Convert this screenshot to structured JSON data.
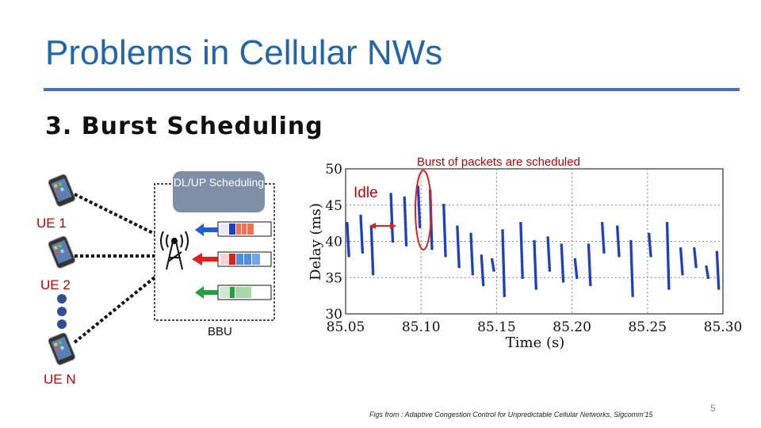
{
  "slide": {
    "title": "Problems in Cellular NWs",
    "subtitle": "3. Burst Scheduling",
    "page_number": "5",
    "footer_citation": "Figs from : Adaptive Congestion Control for Unpredictable Cellular Networks, Sigcomm'15"
  },
  "diagram": {
    "ue_labels": [
      "UE 1",
      "UE 2",
      "UE N"
    ],
    "scheduler_label": "DL/UP Scheduling",
    "bbu_label": "BBU",
    "queue_arrow_colors": [
      "#1f5fd6",
      "#e0201f",
      "#22a040"
    ],
    "icons": [
      "phone-icon",
      "cell-tower-icon",
      "queue-buffer-icon"
    ]
  },
  "annotations": {
    "burst": "Burst of packets are scheduled",
    "idle": "Idle",
    "accent_color": "#c00000"
  },
  "chart_data": {
    "type": "scatter",
    "xlabel": "Time (s)",
    "ylabel": "Delay (ms)",
    "xlim": [
      85.05,
      85.3
    ],
    "ylim": [
      30,
      50
    ],
    "xticks": [
      "85.05",
      "85.10",
      "85.15",
      "85.20",
      "85.25",
      "85.30"
    ],
    "yticks": [
      "30",
      "35",
      "40",
      "45",
      "50"
    ],
    "grid": true,
    "series": [
      {
        "color": "#1f3fbf",
        "bursts": [
          {
            "x": 85.051,
            "y_top": 42.5,
            "y_bottom": 38.0
          },
          {
            "x": 85.06,
            "y_top": 43.5,
            "y_bottom": 38.5
          },
          {
            "x": 85.067,
            "y_top": 42.0,
            "y_bottom": 35.5
          },
          {
            "x": 85.08,
            "y_top": 46.5,
            "y_bottom": 40.0
          },
          {
            "x": 85.089,
            "y_top": 46.0,
            "y_bottom": 39.5
          },
          {
            "x": 85.098,
            "y_top": 47.5,
            "y_bottom": 42.0
          },
          {
            "x": 85.106,
            "y_top": 47.0,
            "y_bottom": 39.0
          },
          {
            "x": 85.115,
            "y_top": 45.0,
            "y_bottom": 38.0
          },
          {
            "x": 85.124,
            "y_top": 42.0,
            "y_bottom": 36.5
          },
          {
            "x": 85.133,
            "y_top": 41.0,
            "y_bottom": 35.5
          },
          {
            "x": 85.14,
            "y_top": 38.0,
            "y_bottom": 34.0
          },
          {
            "x": 85.147,
            "y_top": 37.5,
            "y_bottom": 36.0
          },
          {
            "x": 85.154,
            "y_top": 41.5,
            "y_bottom": 32.5
          },
          {
            "x": 85.166,
            "y_top": 42.5,
            "y_bottom": 35.0
          },
          {
            "x": 85.175,
            "y_top": 40.0,
            "y_bottom": 33.5
          },
          {
            "x": 85.184,
            "y_top": 40.5,
            "y_bottom": 36.0
          },
          {
            "x": 85.193,
            "y_top": 39.5,
            "y_bottom": 34.5
          },
          {
            "x": 85.202,
            "y_top": 37.5,
            "y_bottom": 35.0
          },
          {
            "x": 85.211,
            "y_top": 39.5,
            "y_bottom": 34.0
          },
          {
            "x": 85.22,
            "y_top": 42.5,
            "y_bottom": 38.5
          },
          {
            "x": 85.23,
            "y_top": 42.0,
            "y_bottom": 38.0
          },
          {
            "x": 85.239,
            "y_top": 40.0,
            "y_bottom": 32.5
          },
          {
            "x": 85.251,
            "y_top": 41.0,
            "y_bottom": 38.0
          },
          {
            "x": 85.263,
            "y_top": 42.5,
            "y_bottom": 33.5
          },
          {
            "x": 85.272,
            "y_top": 39.0,
            "y_bottom": 35.5
          },
          {
            "x": 85.281,
            "y_top": 39.0,
            "y_bottom": 36.5
          },
          {
            "x": 85.289,
            "y_top": 36.5,
            "y_bottom": 35.0
          },
          {
            "x": 85.296,
            "y_top": 38.5,
            "y_bottom": 33.5
          }
        ]
      }
    ]
  }
}
